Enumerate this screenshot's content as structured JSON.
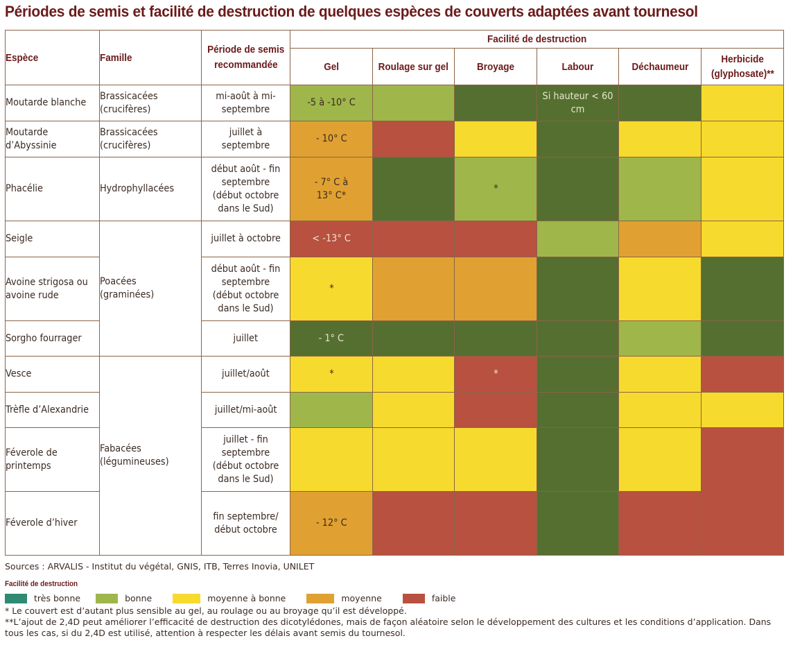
{
  "title": "Périodes de semis et facilité de destruction de quelques espèces de couverts adaptées avant tournesol",
  "colors": {
    "tres_bonne_table": "#556f30",
    "tres_bonne_legend": "#2e8a72",
    "bonne": "#9fb64b",
    "moyenne_a_bonne": "#f7da2e",
    "moyenne": "#e0a132",
    "faible": "#b85140",
    "header_text": "#6b1a1a",
    "border": "#8a6446"
  },
  "table": {
    "headers": {
      "espece": "Espèce",
      "famille": "Famille",
      "periode_line1": "Période de semis",
      "periode_line2": "recommandée",
      "group": "Facilité de destruction",
      "methods": [
        "Gel",
        "Roulage sur gel",
        "Broyage",
        "Labour",
        "Déchaumeur"
      ],
      "herbicide_line1": "Herbicide",
      "herbicide_line2": "(glyphosate)**"
    },
    "families": {
      "brassicacees": "Brassicacées (crucifères)",
      "hydrophyllacees": "Hydrophyllacées",
      "poacees": "Poacées (graminées)",
      "fabacees": "Fabacées (légumineuses)"
    },
    "rows": [
      {
        "espece": "Moutarde blanche",
        "periode": "mi-août à mi-septembre",
        "ratings": [
          "bonne",
          "bonne",
          "tres_bonne",
          "tres_bonne",
          "tres_bonne",
          "moyenne_a_bonne"
        ],
        "notes": [
          "-5 à -10° C",
          "",
          "",
          "Si hauteur < 60 cm",
          "",
          ""
        ]
      },
      {
        "espece": "Moutarde d’Abyssinie",
        "periode": "juillet à septembre",
        "ratings": [
          "moyenne",
          "faible",
          "moyenne_a_bonne",
          "tres_bonne",
          "moyenne_a_bonne",
          "moyenne_a_bonne"
        ],
        "notes": [
          "- 10° C",
          "",
          "",
          "",
          "",
          ""
        ]
      },
      {
        "espece": "Phacélie",
        "periode": "début août - fin septembre (début octobre dans le Sud)",
        "ratings": [
          "moyenne",
          "tres_bonne",
          "bonne",
          "tres_bonne",
          "bonne",
          "moyenne_a_bonne"
        ],
        "notes": [
          "- 7° C à 13° C*",
          "",
          "*",
          "",
          "",
          ""
        ]
      },
      {
        "espece": "Seigle",
        "periode": "juillet à octobre",
        "ratings": [
          "faible",
          "faible",
          "faible",
          "bonne",
          "moyenne",
          "moyenne_a_bonne"
        ],
        "notes": [
          "< -13° C",
          "",
          "",
          "",
          "",
          ""
        ]
      },
      {
        "espece": "Avoine strigosa ou avoine rude",
        "periode": "début août - fin septembre (début octobre dans le Sud)",
        "ratings": [
          "moyenne_a_bonne",
          "moyenne",
          "moyenne",
          "tres_bonne",
          "moyenne_a_bonne",
          "tres_bonne"
        ],
        "notes": [
          "*",
          "",
          "",
          "",
          "",
          ""
        ]
      },
      {
        "espece": "Sorgho fourrager",
        "periode": "juillet",
        "ratings": [
          "tres_bonne",
          "tres_bonne",
          "tres_bonne",
          "tres_bonne",
          "bonne",
          "tres_bonne"
        ],
        "notes": [
          "- 1° C",
          "",
          "",
          "",
          "",
          ""
        ]
      },
      {
        "espece": "Vesce",
        "periode": "juillet/août",
        "ratings": [
          "moyenne_a_bonne",
          "moyenne_a_bonne",
          "faible",
          "tres_bonne",
          "moyenne_a_bonne",
          "faible"
        ],
        "notes": [
          "*",
          "",
          "*",
          "",
          "",
          ""
        ]
      },
      {
        "espece": "Trèfle d’Alexandrie",
        "periode": "juillet/mi-août",
        "ratings": [
          "bonne",
          "moyenne_a_bonne",
          "faible",
          "tres_bonne",
          "moyenne_a_bonne",
          "moyenne_a_bonne"
        ],
        "notes": [
          "",
          "",
          "",
          "",
          "",
          ""
        ]
      },
      {
        "espece": "Féverole de printemps",
        "periode": "juillet - fin septembre (début octobre dans le Sud)",
        "ratings": [
          "moyenne_a_bonne",
          "moyenne_a_bonne",
          "moyenne_a_bonne",
          "tres_bonne",
          "moyenne_a_bonne",
          "faible"
        ],
        "notes": [
          "",
          "",
          "",
          "",
          "",
          ""
        ]
      },
      {
        "espece": "Féverole d’hiver",
        "periode": "fin septembre/ début octobre",
        "ratings": [
          "moyenne",
          "faible",
          "faible",
          "tres_bonne",
          "faible",
          "faible"
        ],
        "notes": [
          "- 12° C",
          "",
          "",
          "",
          "",
          ""
        ]
      }
    ]
  },
  "sources": "Sources : ARVALIS - Institut du végétal, GNIS, ITB, Terres Inovia, UNILET",
  "legend": {
    "title": "Facilité de destruction",
    "items": [
      {
        "key": "tres_bonne",
        "label": "très bonne"
      },
      {
        "key": "bonne",
        "label": "bonne"
      },
      {
        "key": "moyenne_a_bonne",
        "label": "moyenne à bonne"
      },
      {
        "key": "moyenne",
        "label": "moyenne"
      },
      {
        "key": "faible",
        "label": "faible"
      }
    ]
  },
  "footnotes": {
    "single": "* Le couvert est d’autant plus sensible au gel, au roulage ou au broyage qu’il est développé.",
    "double": "**L’ajout de 2,4D peut améliorer l’efficacité de destruction des dicotylédones, mais de façon aléatoire selon le développement des cultures et les conditions d’application. Dans tous les cas, si du 2,4D est utilisé, attention à respecter les délais avant semis du tournesol."
  }
}
